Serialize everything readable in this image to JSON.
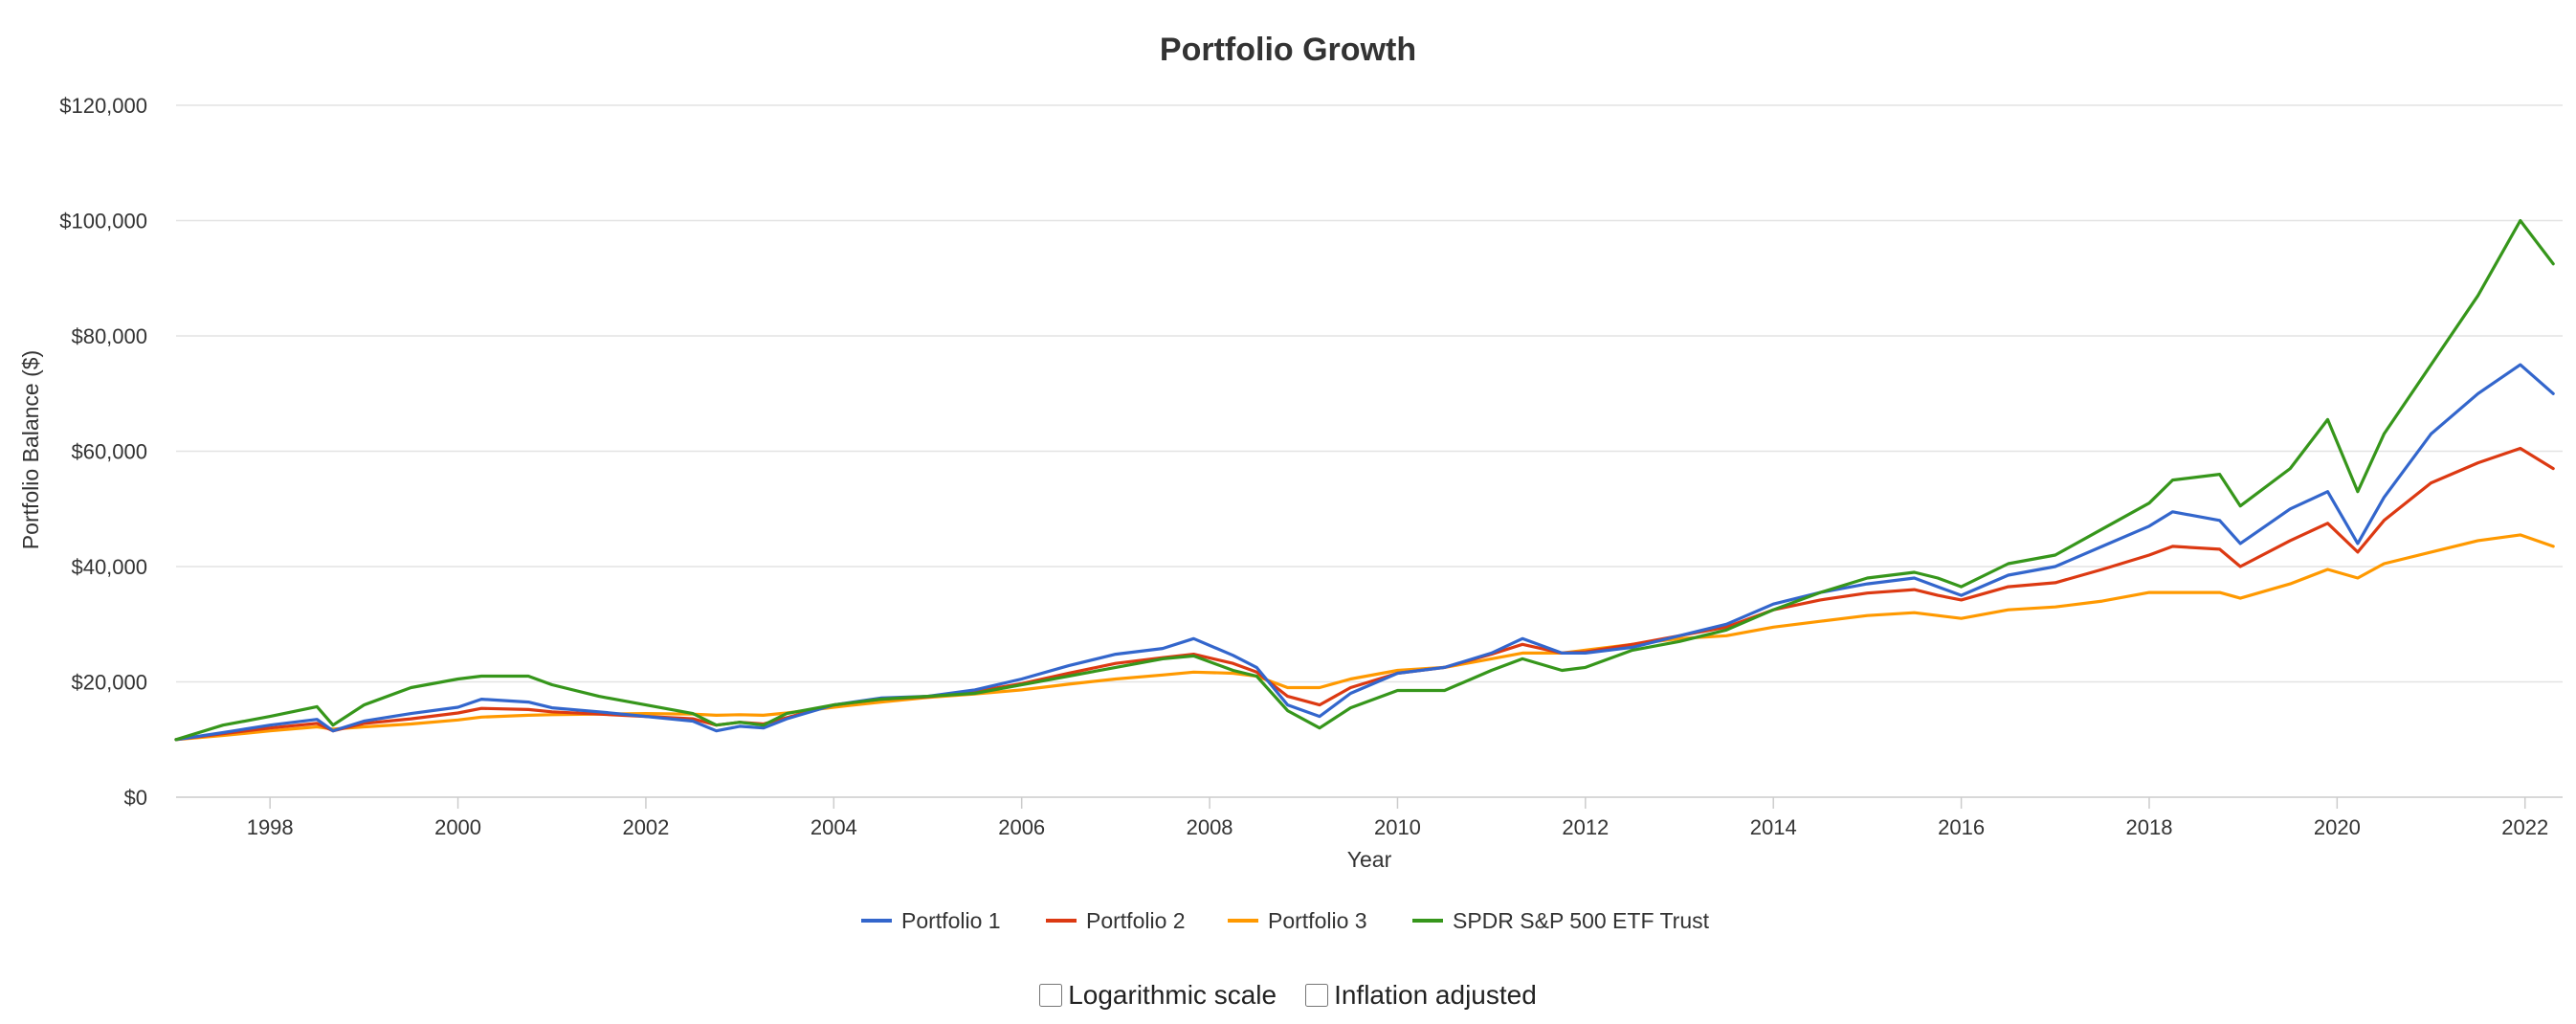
{
  "chart_data": {
    "type": "line",
    "title": "Portfolio Growth",
    "xlabel": "Year",
    "ylabel": "Portfolio Balance ($)",
    "x_range": [
      1997.0,
      2022.4
    ],
    "x_ticks": [
      "1998",
      "2000",
      "2002",
      "2004",
      "2006",
      "2008",
      "2010",
      "2012",
      "2014",
      "2016",
      "2018",
      "2020",
      "2022"
    ],
    "y_range": [
      0,
      120000
    ],
    "y_ticks": [
      "$0",
      "$20,000",
      "$40,000",
      "$60,000",
      "$80,000",
      "$100,000",
      "$120,000"
    ],
    "grid": true,
    "legend_position": "bottom-center",
    "x": [
      1997.0,
      1997.5,
      1998.0,
      1998.5,
      1998.67,
      1999.0,
      1999.5,
      2000.0,
      2000.25,
      2000.75,
      2001.0,
      2001.5,
      2002.0,
      2002.5,
      2002.75,
      2003.0,
      2003.25,
      2003.5,
      2004.0,
      2004.5,
      2005.0,
      2005.5,
      2006.0,
      2006.5,
      2007.0,
      2007.5,
      2007.83,
      2008.25,
      2008.5,
      2008.83,
      2009.17,
      2009.5,
      2010.0,
      2010.5,
      2011.0,
      2011.33,
      2011.75,
      2012.0,
      2012.5,
      2013.0,
      2013.5,
      2014.0,
      2014.5,
      2015.0,
      2015.5,
      2015.75,
      2016.0,
      2016.5,
      2017.0,
      2017.5,
      2018.0,
      2018.25,
      2018.75,
      2018.97,
      2019.5,
      2019.9,
      2020.22,
      2020.5,
      2021.0,
      2021.5,
      2021.95,
      2022.3
    ],
    "series": [
      {
        "name": "Portfolio 1",
        "color": "#3366cc",
        "values": [
          10000,
          11200,
          12500,
          13500,
          11500,
          13200,
          14500,
          15600,
          17000,
          16500,
          15500,
          14800,
          14000,
          13200,
          11500,
          12300,
          12000,
          13600,
          16000,
          17200,
          17500,
          18600,
          20500,
          22800,
          24800,
          25800,
          27500,
          24600,
          22500,
          16000,
          14000,
          18000,
          21500,
          22500,
          25000,
          27500,
          25000,
          25000,
          26000,
          28000,
          30000,
          33500,
          35500,
          37000,
          38000,
          36500,
          35000,
          38500,
          40000,
          43500,
          47000,
          49500,
          48000,
          44000,
          50000,
          53000,
          44000,
          52000,
          63000,
          70000,
          75000,
          70000
        ]
      },
      {
        "name": "Portfolio 2",
        "color": "#dc3912",
        "values": [
          10000,
          11000,
          12000,
          12800,
          11500,
          12800,
          13600,
          14600,
          15400,
          15200,
          14800,
          14400,
          14000,
          13600,
          12500,
          13000,
          12700,
          13800,
          16000,
          17000,
          17400,
          18300,
          19700,
          21500,
          23200,
          24200,
          24800,
          23200,
          21700,
          17500,
          16000,
          19000,
          21500,
          22500,
          24800,
          26500,
          25000,
          25200,
          26500,
          28000,
          29500,
          32500,
          34200,
          35400,
          36000,
          35000,
          34200,
          36500,
          37200,
          39500,
          42000,
          43500,
          43000,
          40000,
          44500,
          47500,
          42500,
          48000,
          54500,
          58000,
          60500,
          57000
        ]
      },
      {
        "name": "Portfolio 3",
        "color": "#ff9900",
        "values": [
          10000,
          10700,
          11500,
          12200,
          11800,
          12200,
          12700,
          13400,
          13900,
          14200,
          14300,
          14400,
          14500,
          14400,
          14200,
          14300,
          14200,
          14600,
          15600,
          16500,
          17300,
          17900,
          18600,
          19600,
          20500,
          21200,
          21700,
          21500,
          21000,
          19000,
          19000,
          20500,
          22000,
          22500,
          24000,
          25000,
          25000,
          25500,
          26500,
          27500,
          28000,
          29500,
          30500,
          31500,
          32000,
          31500,
          31000,
          32500,
          33000,
          34000,
          35500,
          35500,
          35500,
          34500,
          37000,
          39500,
          38000,
          40500,
          42500,
          44500,
          45500,
          43500
        ]
      },
      {
        "name": "SPDR S&P 500 ETF Trust",
        "color": "#36961b",
        "values": [
          10000,
          12500,
          14000,
          15700,
          12500,
          16000,
          19000,
          20500,
          21000,
          21000,
          19500,
          17500,
          16000,
          14500,
          12500,
          13000,
          12500,
          14500,
          16000,
          17000,
          17500,
          18000,
          19500,
          21000,
          22500,
          24000,
          24500,
          22000,
          21000,
          15000,
          12000,
          15500,
          18500,
          18500,
          22000,
          24000,
          22000,
          22500,
          25500,
          27000,
          29000,
          32500,
          35500,
          38000,
          39000,
          38000,
          36500,
          40500,
          42000,
          46500,
          51000,
          55000,
          56000,
          50500,
          57000,
          65500,
          53000,
          63000,
          75000,
          87000,
          100000,
          92500
        ]
      }
    ]
  },
  "controls": {
    "log_scale_label": "Logarithmic scale",
    "log_scale_checked": false,
    "inflation_label": "Inflation adjusted",
    "inflation_checked": false
  }
}
